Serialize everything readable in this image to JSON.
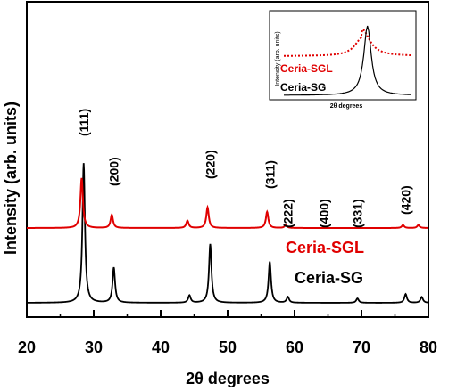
{
  "chart_data": {
    "type": "line",
    "xlabel": "2θ degrees",
    "ylabel": "Intensity (arb. units)",
    "xlim": [
      20,
      80
    ],
    "x_ticks": [
      "20",
      "30",
      "40",
      "50",
      "60",
      "70",
      "80"
    ],
    "grid": false,
    "legend": "none",
    "series": [
      {
        "name": "Ceria-SG",
        "color": "#000000",
        "style": "solid",
        "peaks": [
          {
            "x": 28.5,
            "h": 0.95
          },
          {
            "x": 33.0,
            "h": 0.24
          },
          {
            "x": 44.3,
            "h": 0.05
          },
          {
            "x": 47.4,
            "h": 0.4
          },
          {
            "x": 56.3,
            "h": 0.28
          },
          {
            "x": 59.0,
            "h": 0.04
          },
          {
            "x": 69.4,
            "h": 0.03
          },
          {
            "x": 76.6,
            "h": 0.06
          },
          {
            "x": 79.0,
            "h": 0.04
          }
        ]
      },
      {
        "name": "Ceria-SGL",
        "color": "#e00000",
        "style": "solid",
        "peaks": [
          {
            "x": 28.2,
            "h": 0.34
          },
          {
            "x": 32.7,
            "h": 0.09
          },
          {
            "x": 44.0,
            "h": 0.05
          },
          {
            "x": 47.0,
            "h": 0.14
          },
          {
            "x": 55.9,
            "h": 0.11
          },
          {
            "x": 58.7,
            "h": 0.02
          },
          {
            "x": 76.2,
            "h": 0.02
          },
          {
            "x": 78.5,
            "h": 0.02
          }
        ]
      }
    ],
    "annotations": [
      {
        "text": "(111)",
        "x": 28.5
      },
      {
        "text": "(200)",
        "x": 33.0
      },
      {
        "text": "(220)",
        "x": 47.4
      },
      {
        "text": "(311)",
        "x": 56.3
      },
      {
        "text": "(222)",
        "x": 59.0
      },
      {
        "text": "(400)",
        "x": 64.4
      },
      {
        "text": "(331)",
        "x": 69.4
      },
      {
        "text": "(420)",
        "x": 76.6
      }
    ],
    "inset": {
      "xlabel": "2θ degrees",
      "ylabel": "Intensity (arb. units)",
      "series": [
        {
          "name": "Ceria-SGL",
          "color": "#e00000",
          "style": "dotted"
        },
        {
          "name": "Ceria-SG",
          "color": "#000000",
          "style": "solid"
        }
      ]
    }
  }
}
